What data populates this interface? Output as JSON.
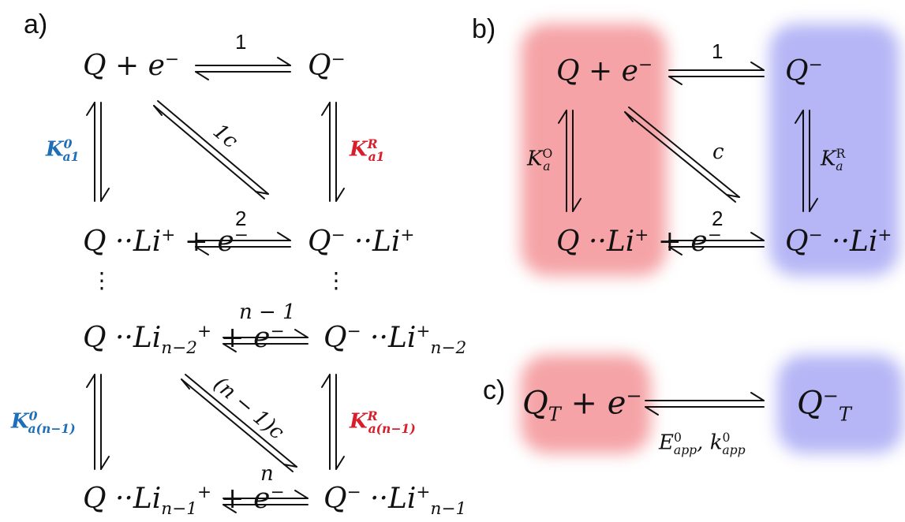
{
  "panels": {
    "a": {
      "label": "a)"
    },
    "b": {
      "label": "b)"
    },
    "c": {
      "label": "c)"
    }
  },
  "colors": {
    "k_ox": "#1f6fb8",
    "k_red": "#d81e2a",
    "blob_red": "#f5a3a6",
    "blob_blue": "#b6b6f6"
  },
  "a": {
    "row1_left": "Q + e",
    "row1_right": "Q",
    "row2_left_main": "Q ··Li",
    "row2_left_tail": " + e",
    "row2_right": "Q",
    "row2_right_tail": " ··Li",
    "row3_left_main": "Q ··Li",
    "row3_left_sub": "n−2",
    "row3_left_tail": " + e",
    "row3_right": "Q",
    "row3_right_tail": " ··Li",
    "row3_right_sub": "n−2",
    "row4_left_main": "Q ··Li",
    "row4_left_sub": "n−1",
    "row4_left_tail": " + e",
    "row4_right": "Q",
    "row4_right_tail": " ··Li",
    "row4_right_sub": "n−1",
    "arrow1": "1",
    "arrow2": "2",
    "arrow3": "n − 1",
    "arrow4": "n",
    "diag1": "1c",
    "diag2": "(n − 1)c",
    "k_ox_1": "K",
    "k_ox_1_sup": "0",
    "k_ox_1_sub": "a1",
    "k_red_1": "K",
    "k_red_1_sup": "R",
    "k_red_1_sub": "a1",
    "k_ox_2": "K",
    "k_ox_2_sup": "0",
    "k_ox_2_sub": "a(n−1)",
    "k_red_2": "K",
    "k_red_2_sup": "R",
    "k_red_2_sub": "a(n−1)",
    "vdots": "⋮"
  },
  "b": {
    "row1_left": "Q + e",
    "row1_right": "Q",
    "row2_left_main": "Q ··Li",
    "row2_left_tail": " + e",
    "row2_right": "Q",
    "row2_right_tail": " ··Li",
    "arrow1": "1",
    "arrow2": "2",
    "diag": "c",
    "k_left": "K",
    "k_left_sup": "O",
    "k_left_sub": "a",
    "k_right": "K",
    "k_right_sup": "R",
    "k_right_sub": "a"
  },
  "c": {
    "left_main": "Q",
    "left_sub": "T",
    "left_tail": " + e",
    "right_main": "Q",
    "right_sub": "T",
    "arrow_label": "E",
    "arrow_label_sup": "0",
    "arrow_label_sub": "app",
    "arrow_label_sep": ", ",
    "arrow_label2": "k",
    "arrow_label2_sup": "0",
    "arrow_label2_sub": "app"
  },
  "glyphs": {
    "minus": "−",
    "plus": "+"
  }
}
